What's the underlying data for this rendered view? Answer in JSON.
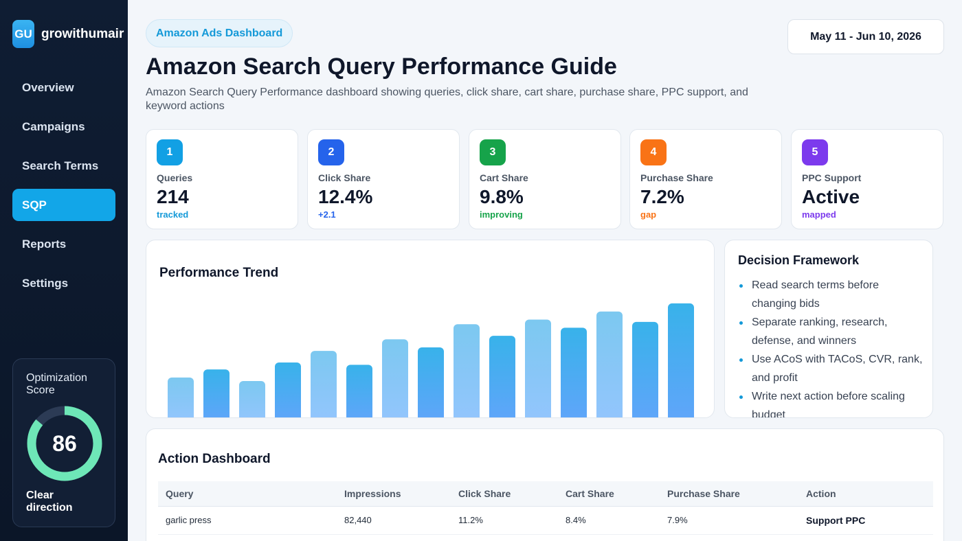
{
  "brand": {
    "logo": "GU",
    "name": "growithumair"
  },
  "nav": {
    "items": [
      "Overview",
      "Campaigns",
      "Search Terms",
      "SQP",
      "Reports",
      "Settings"
    ],
    "active_index": 3
  },
  "score": {
    "title": "Optimization Score",
    "value": "86",
    "percent": 86,
    "caption": "Clear direction"
  },
  "header": {
    "pill": "Amazon Ads Dashboard",
    "date_range": "May 11 - Jun 10, 2026",
    "title": "Amazon Search Query Performance Guide",
    "subtitle": "Amazon Search Query Performance dashboard showing queries, click share, cart share, purchase share, PPC support, and keyword actions"
  },
  "kpis": [
    {
      "num": "1",
      "label": "Queries",
      "value": "214",
      "note": "tracked",
      "color": "#12a0e4",
      "note_color": "#1499d8"
    },
    {
      "num": "2",
      "label": "Click Share",
      "value": "12.4%",
      "note": "+2.1",
      "color": "#2563eb",
      "note_color": "#2563eb"
    },
    {
      "num": "3",
      "label": "Cart Share",
      "value": "9.8%",
      "note": "improving",
      "color": "#16a34a",
      "note_color": "#16a34a"
    },
    {
      "num": "4",
      "label": "Purchase Share",
      "value": "7.2%",
      "note": "gap",
      "color": "#f97316",
      "note_color": "#f97316"
    },
    {
      "num": "5",
      "label": "PPC Support",
      "value": "Active",
      "note": "mapped",
      "color": "#7c3aed",
      "note_color": "#7c3aed"
    }
  ],
  "chart": {
    "title": "Performance Trend"
  },
  "chart_data": {
    "type": "bar",
    "title": "Performance Trend",
    "categories": [
      "",
      "",
      "",
      "",
      "",
      "",
      "",
      "",
      "",
      "",
      "",
      "",
      "",
      "",
      ""
    ],
    "values": [
      38,
      45,
      35,
      51,
      61,
      49,
      71,
      64,
      84,
      74,
      88,
      81,
      95,
      86,
      102
    ],
    "ylim": [
      0,
      115
    ],
    "grid": false
  },
  "decision": {
    "title": "Decision Framework",
    "items": [
      "Read search terms before changing bids",
      "Separate ranking, research, defense, and winners",
      "Use ACoS with TACoS, CVR, rank, and profit",
      "Write next action before scaling budget"
    ]
  },
  "actions": {
    "title": "Action Dashboard",
    "columns": [
      "Query",
      "Impressions",
      "Click Share",
      "Cart Share",
      "Purchase Share",
      "Action"
    ],
    "rows": [
      [
        "garlic press",
        "82,440",
        "11.2%",
        "8.4%",
        "7.9%",
        "Support PPC"
      ]
    ]
  },
  "colors": {
    "accent": "#12a6e8",
    "sidebar": "#0f1d33",
    "ring": "#6ee7b7"
  }
}
